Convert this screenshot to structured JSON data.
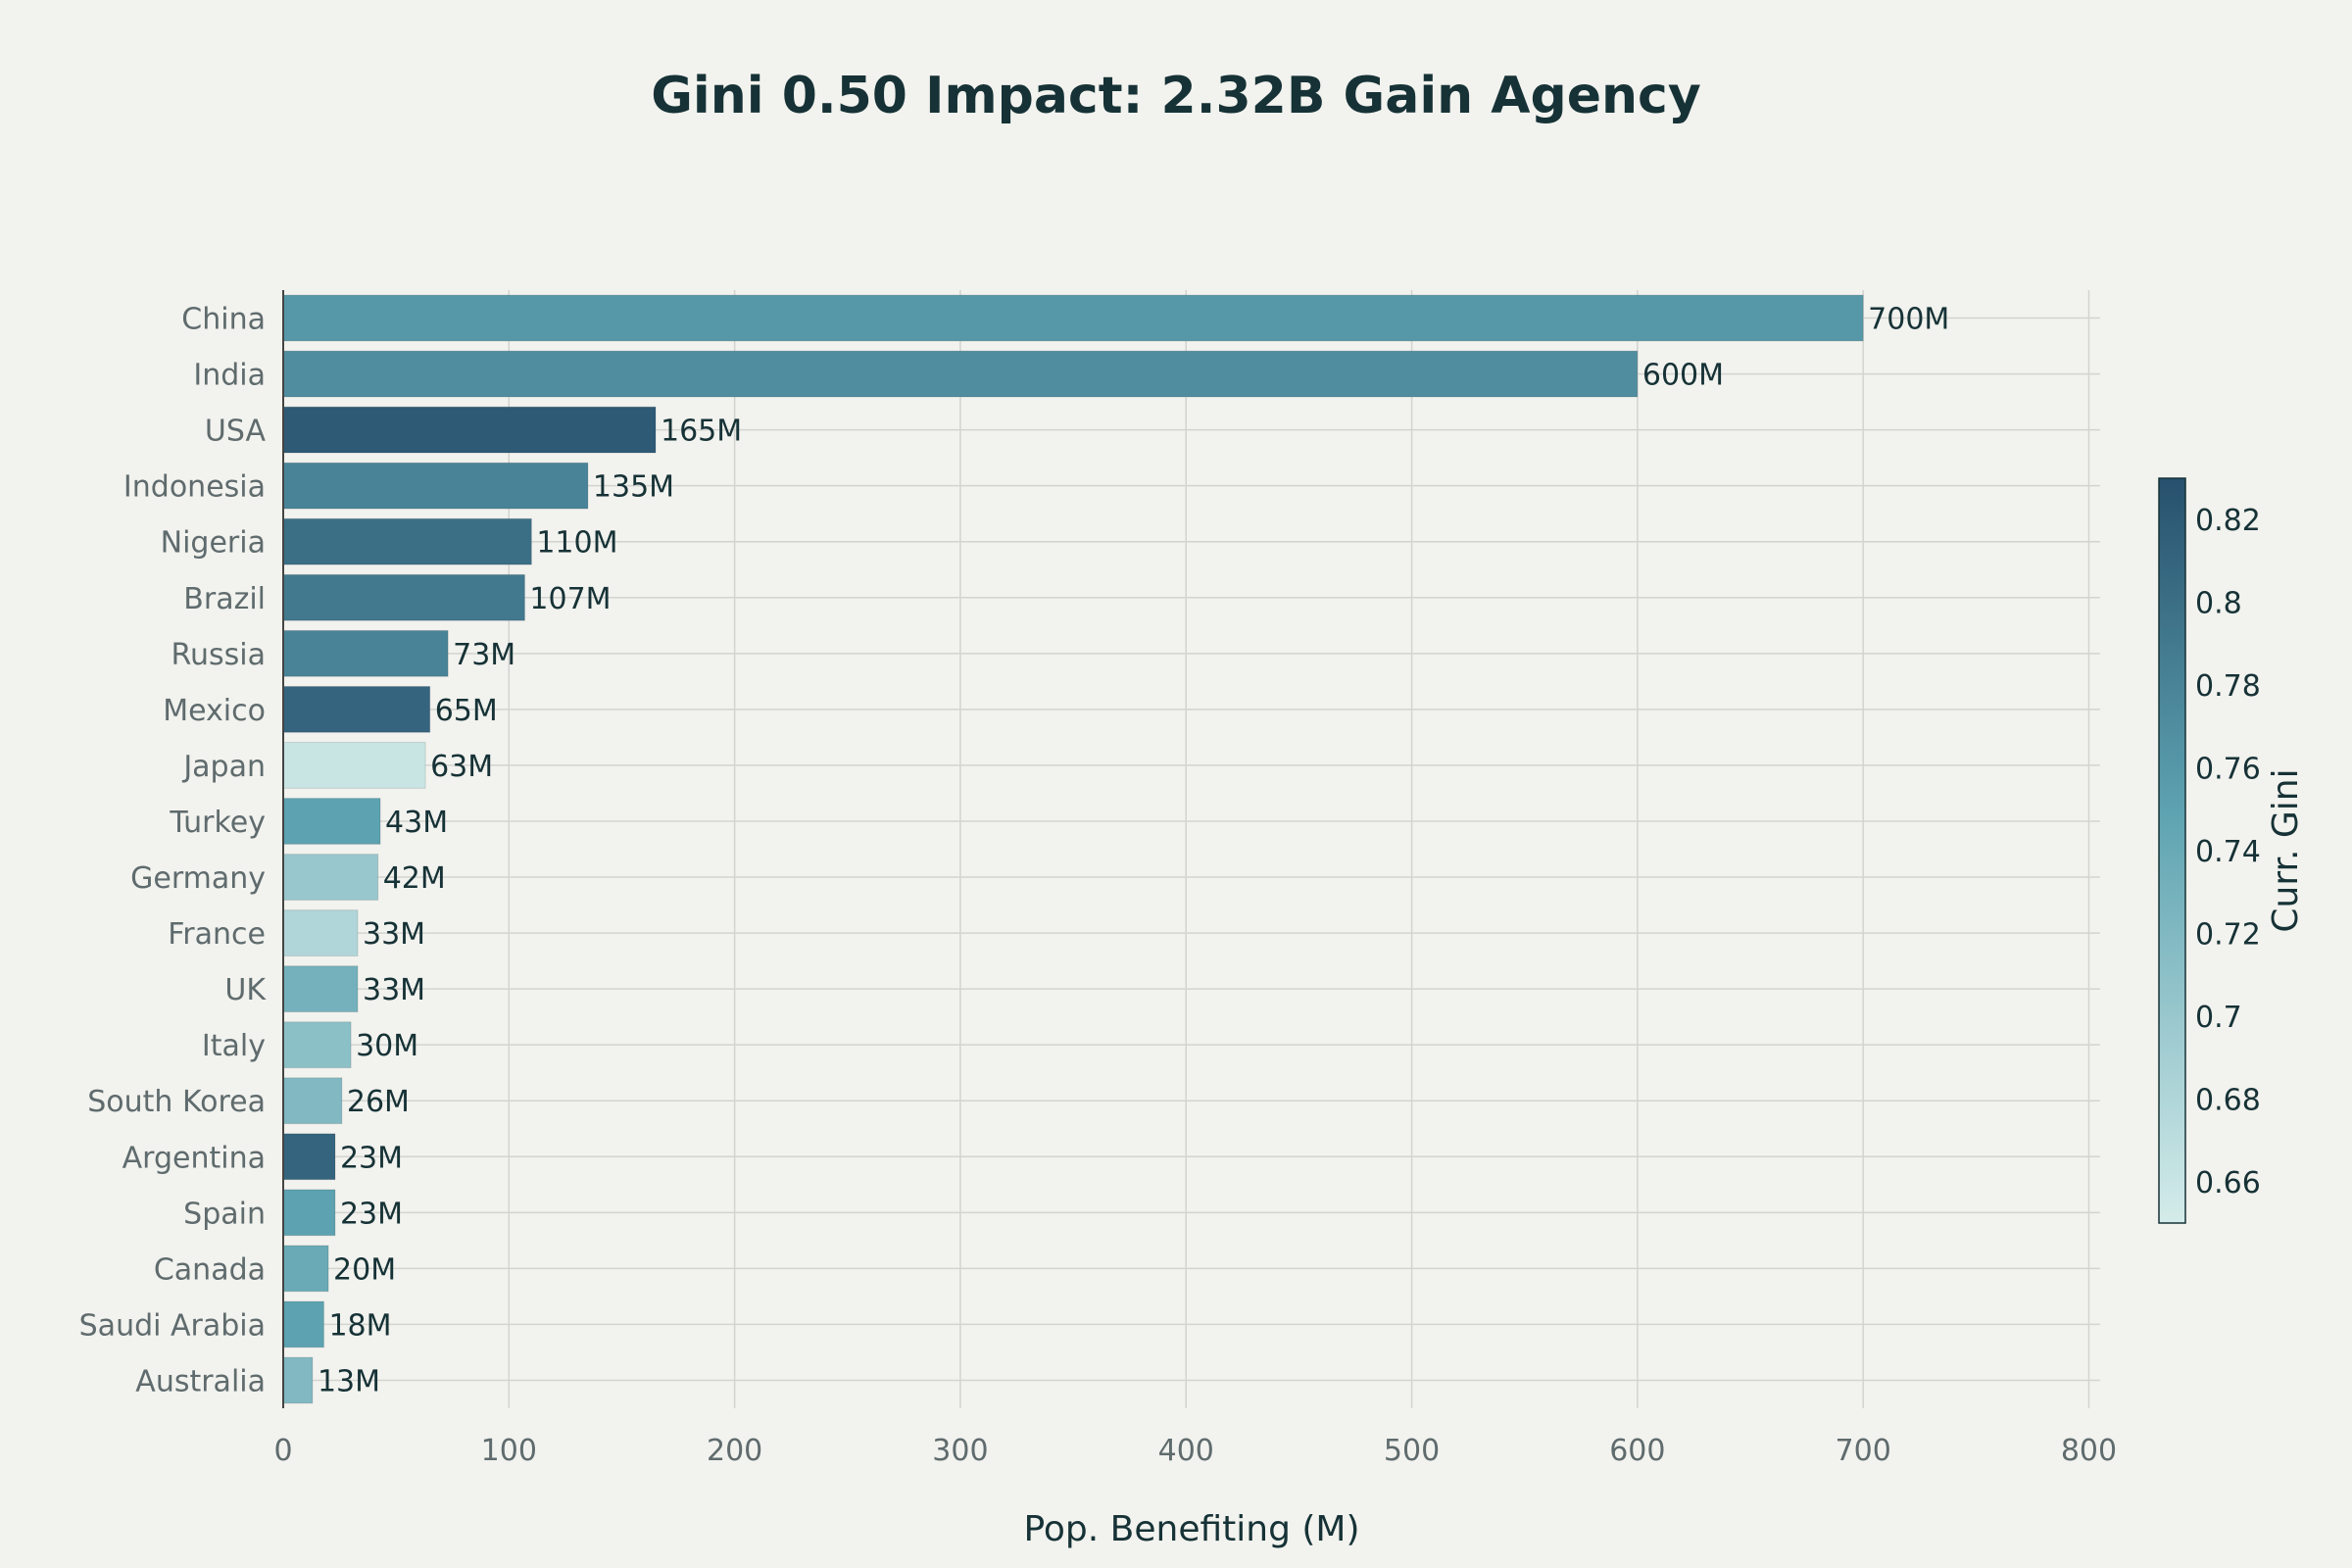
{
  "chart_data": {
    "type": "bar",
    "orientation": "horizontal",
    "title": "Gini 0.50 Impact: 2.32B Gain Agency",
    "xlabel": "Pop. Benefiting (M)",
    "ylabel": "",
    "xlim": [
      0,
      805
    ],
    "xticks": [
      0,
      100,
      200,
      300,
      400,
      500,
      600,
      700,
      800
    ],
    "grid": true,
    "categories": [
      "China",
      "India",
      "USA",
      "Indonesia",
      "Nigeria",
      "Brazil",
      "Russia",
      "Mexico",
      "Japan",
      "Turkey",
      "Germany",
      "France",
      "UK",
      "Italy",
      "South Korea",
      "Argentina",
      "Spain",
      "Canada",
      "Saudi Arabia",
      "Australia"
    ],
    "values": [
      700,
      600,
      165,
      135,
      110,
      107,
      73,
      65,
      63,
      43,
      42,
      33,
      33,
      30,
      26,
      23,
      23,
      20,
      18,
      13
    ],
    "data_labels": [
      "700M",
      "600M",
      "165M",
      "135M",
      "110M",
      "107M",
      "73M",
      "65M",
      "63M",
      "43M",
      "42M",
      "33M",
      "33M",
      "30M",
      "26M",
      "23M",
      "23M",
      "20M",
      "18M",
      "13M"
    ],
    "color_values": [
      0.76,
      0.77,
      0.82,
      0.78,
      0.8,
      0.79,
      0.78,
      0.81,
      0.66,
      0.75,
      0.7,
      0.68,
      0.73,
      0.71,
      0.72,
      0.81,
      0.75,
      0.74,
      0.75,
      0.72
    ],
    "colorbar": {
      "title": "Curr. Gini",
      "range": [
        0.65,
        0.83
      ],
      "ticks": [
        0.66,
        0.68,
        0.7,
        0.72,
        0.74,
        0.76,
        0.78,
        0.8,
        0.82
      ],
      "tick_labels": [
        "0.66",
        "0.68",
        "0.7",
        "0.72",
        "0.74",
        "0.76",
        "0.78",
        "0.8",
        "0.82"
      ],
      "color_low": "#d4ecea",
      "color_mid": "#5ea3b1",
      "color_high": "#27506d"
    }
  },
  "colors": {
    "background": "#f2f2ee",
    "grid": "#d3d4d0",
    "text_dark": "#163236",
    "text_muted": "#5f6b6d"
  }
}
